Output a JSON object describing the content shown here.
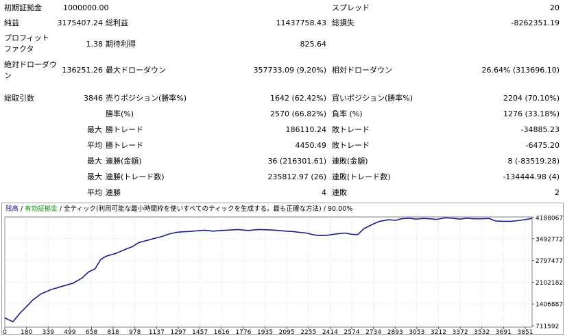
{
  "report": {
    "initial_deposit_label": "初期証拠金",
    "initial_deposit_value": "1000000.00",
    "spread_label": "スプレッド",
    "spread_value": "20",
    "net_profit_label": "純益",
    "net_profit_value": "3175407.24",
    "gross_profit_label": "総利益",
    "gross_profit_value": "11437758.43",
    "gross_loss_label": "総損失",
    "gross_loss_value": "-8262351.19",
    "profit_factor_label_1": "プロフィット",
    "profit_factor_label_2": "ファクタ",
    "profit_factor_value": "1.38",
    "expected_payoff_label": "期待利得",
    "expected_payoff_value": "825.64",
    "abs_drawdown_label_1": "絶対ドローダウ",
    "abs_drawdown_label_2": "ン",
    "abs_drawdown_value": "136251.26",
    "max_drawdown_label": "最大ドローダウン",
    "max_drawdown_value": "357733.09 (9.20%)",
    "rel_drawdown_label": "相対ドローダウン",
    "rel_drawdown_value": "26.64% (313696.10)",
    "total_trades_label": "総取引数",
    "total_trades_value": "3846",
    "short_positions_label": "売りポジション(勝率%)",
    "short_positions_value": "1642 (62.42%)",
    "long_positions_label": "買いポジション(勝率%)",
    "long_positions_value": "2204 (70.10%)",
    "win_rate_label": "勝率(%)",
    "win_rate_value": "2570 (66.82%)",
    "loss_rate_label": "負率 (%)",
    "loss_rate_value": "1276 (33.18%)",
    "largest_label": "最大",
    "largest_win_label": "勝トレード",
    "largest_win_value": "186110.24",
    "largest_loss_label": "敗トレード",
    "largest_loss_value": "-34885.23",
    "average_label": "平均",
    "average_win_label": "勝トレード",
    "average_win_value": "4450.49",
    "average_loss_label": "敗トレード",
    "average_loss_value": "-6475.20",
    "max_label_a": "最大",
    "max_consec_wins_amt_label": "連勝(金額)",
    "max_consec_wins_amt_value": "36 (216301.61)",
    "max_consec_losses_amt_label": "連敗(金額)",
    "max_consec_losses_amt_value": "8 (-83519.28)",
    "max_label_b": "最大",
    "max_consec_wins_cnt_label": "連勝(トレード数)",
    "max_consec_wins_cnt_value": "235812.97 (26)",
    "max_consec_losses_cnt_label": "連敗(トレード数)",
    "max_consec_losses_cnt_value": "-134444.98 (4)",
    "avg_label_b": "平均",
    "avg_consec_wins_label": "連勝",
    "avg_consec_wins_value": "4",
    "avg_consec_losses_label": "連敗",
    "avg_consec_losses_value": "2"
  },
  "legend": {
    "balance": "残高",
    "sep1": " / ",
    "equity": "有効証拠金",
    "sep2": " / ",
    "model": "全ティック(利用可能な最小時間枠を使いすべてのティックを生成する。最も正確な方法)",
    "sep3": " / ",
    "quality": "90.00%"
  },
  "colors": {
    "balance_line": "#1a1a8c",
    "equity_text": "#0a8a0a",
    "grid": "#c8c8c8"
  },
  "chart_data": {
    "type": "line",
    "title": "",
    "xlabel": "",
    "ylabel": "",
    "x_ticks": [
      "0",
      "180",
      "339",
      "499",
      "658",
      "818",
      "978",
      "1137",
      "1297",
      "1457",
      "1616",
      "1776",
      "1935",
      "2095",
      "2255",
      "2414",
      "2574",
      "2734",
      "2893",
      "3053",
      "3212",
      "3372",
      "3532",
      "3691",
      "3851"
    ],
    "y_ticks": [
      "711592",
      "1406887",
      "2102182",
      "2797477",
      "3492772",
      "4188067"
    ],
    "xlim": [
      0,
      3846
    ],
    "ylim": [
      711592,
      4188067
    ],
    "grid": true,
    "series": [
      {
        "x": [
          0,
          60,
          110,
          150,
          200,
          260,
          339,
          420,
          499,
          560,
          610,
          658,
          700,
          740,
          780,
          818,
          870,
          930,
          978,
          1040,
          1100,
          1137,
          1200,
          1250,
          1297,
          1350,
          1400,
          1457,
          1520,
          1570,
          1616,
          1700,
          1776,
          1850,
          1935,
          2000,
          2050,
          2095,
          2150,
          2200,
          2255,
          2300,
          2350,
          2414,
          2480,
          2530,
          2574,
          2620,
          2680,
          2734,
          2800,
          2850,
          2893,
          2950,
          3000,
          3053,
          3100,
          3150,
          3212,
          3260,
          3320,
          3372,
          3420,
          3480,
          3532,
          3580,
          3630,
          3691,
          3740,
          3790,
          3846
        ],
        "y": [
          1000000,
          880000,
          1150000,
          1320000,
          1550000,
          1750000,
          1900000,
          2000000,
          2100000,
          2250000,
          2450000,
          2550000,
          2850000,
          2950000,
          3000000,
          3050000,
          3150000,
          3250000,
          3380000,
          3450000,
          3520000,
          3560000,
          3650000,
          3700000,
          3720000,
          3730000,
          3750000,
          3770000,
          3740000,
          3760000,
          3770000,
          3790000,
          3760000,
          3790000,
          3780000,
          3760000,
          3740000,
          3730000,
          3700000,
          3680000,
          3620000,
          3600000,
          3610000,
          3650000,
          3680000,
          3640000,
          3630000,
          3820000,
          3950000,
          4050000,
          4100000,
          4080000,
          4130000,
          4150000,
          4120000,
          4140000,
          4130000,
          4110000,
          4160000,
          4150000,
          4120000,
          4150000,
          4130000,
          4130000,
          4140000,
          4060000,
          4050000,
          4050000,
          4070000,
          4100000,
          4140000
        ]
      }
    ]
  }
}
